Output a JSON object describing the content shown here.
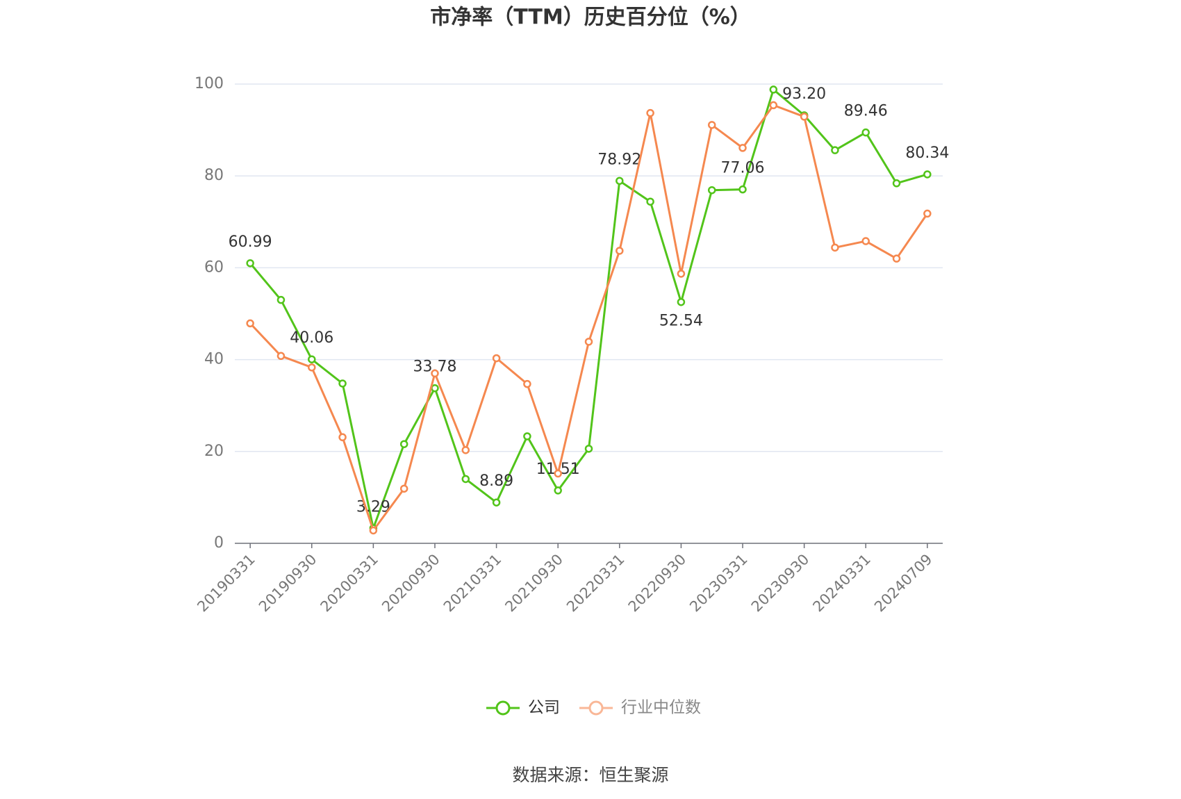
{
  "chart_data": {
    "type": "line",
    "title": "市净率（TTM）历史百分位（%）",
    "source": "数据来源：恒生聚源",
    "categories": [
      "20190331",
      null,
      "20190930",
      null,
      "20200331",
      null,
      "20200930",
      null,
      "20210331",
      null,
      "20210930",
      null,
      "20220331",
      null,
      "20220930",
      null,
      "20230331",
      null,
      "20230930",
      null,
      "20240331",
      null,
      "20240709"
    ],
    "series": [
      {
        "name": "公司",
        "color": "#52c41a",
        "values": [
          60.99,
          53.0,
          40.06,
          34.8,
          3.29,
          21.6,
          33.78,
          14.0,
          8.89,
          23.3,
          11.51,
          20.6,
          78.92,
          74.4,
          52.54,
          76.9,
          77.06,
          98.8,
          93.2,
          85.6,
          89.46,
          78.4,
          80.34
        ],
        "value_labels": [
          "60.99",
          null,
          "40.06",
          null,
          "3.29",
          null,
          "33.78",
          null,
          "8.89",
          null,
          "11.51",
          null,
          "78.92",
          null,
          "52.54",
          null,
          "77.06",
          null,
          "93.20",
          null,
          "89.46",
          null,
          "80.34"
        ]
      },
      {
        "name": "行业中位数",
        "color": "#f5884f",
        "values": [
          47.9,
          40.8,
          38.3,
          23.1,
          2.8,
          11.9,
          37.0,
          20.3,
          40.3,
          34.7,
          15.2,
          43.9,
          63.7,
          93.7,
          58.7,
          91.1,
          86.1,
          95.4,
          92.9,
          64.4,
          65.8,
          62.0,
          71.8
        ]
      }
    ],
    "ylim": [
      0,
      100
    ],
    "yticks": [
      0,
      20,
      40,
      60,
      80,
      100
    ],
    "grid": true
  }
}
